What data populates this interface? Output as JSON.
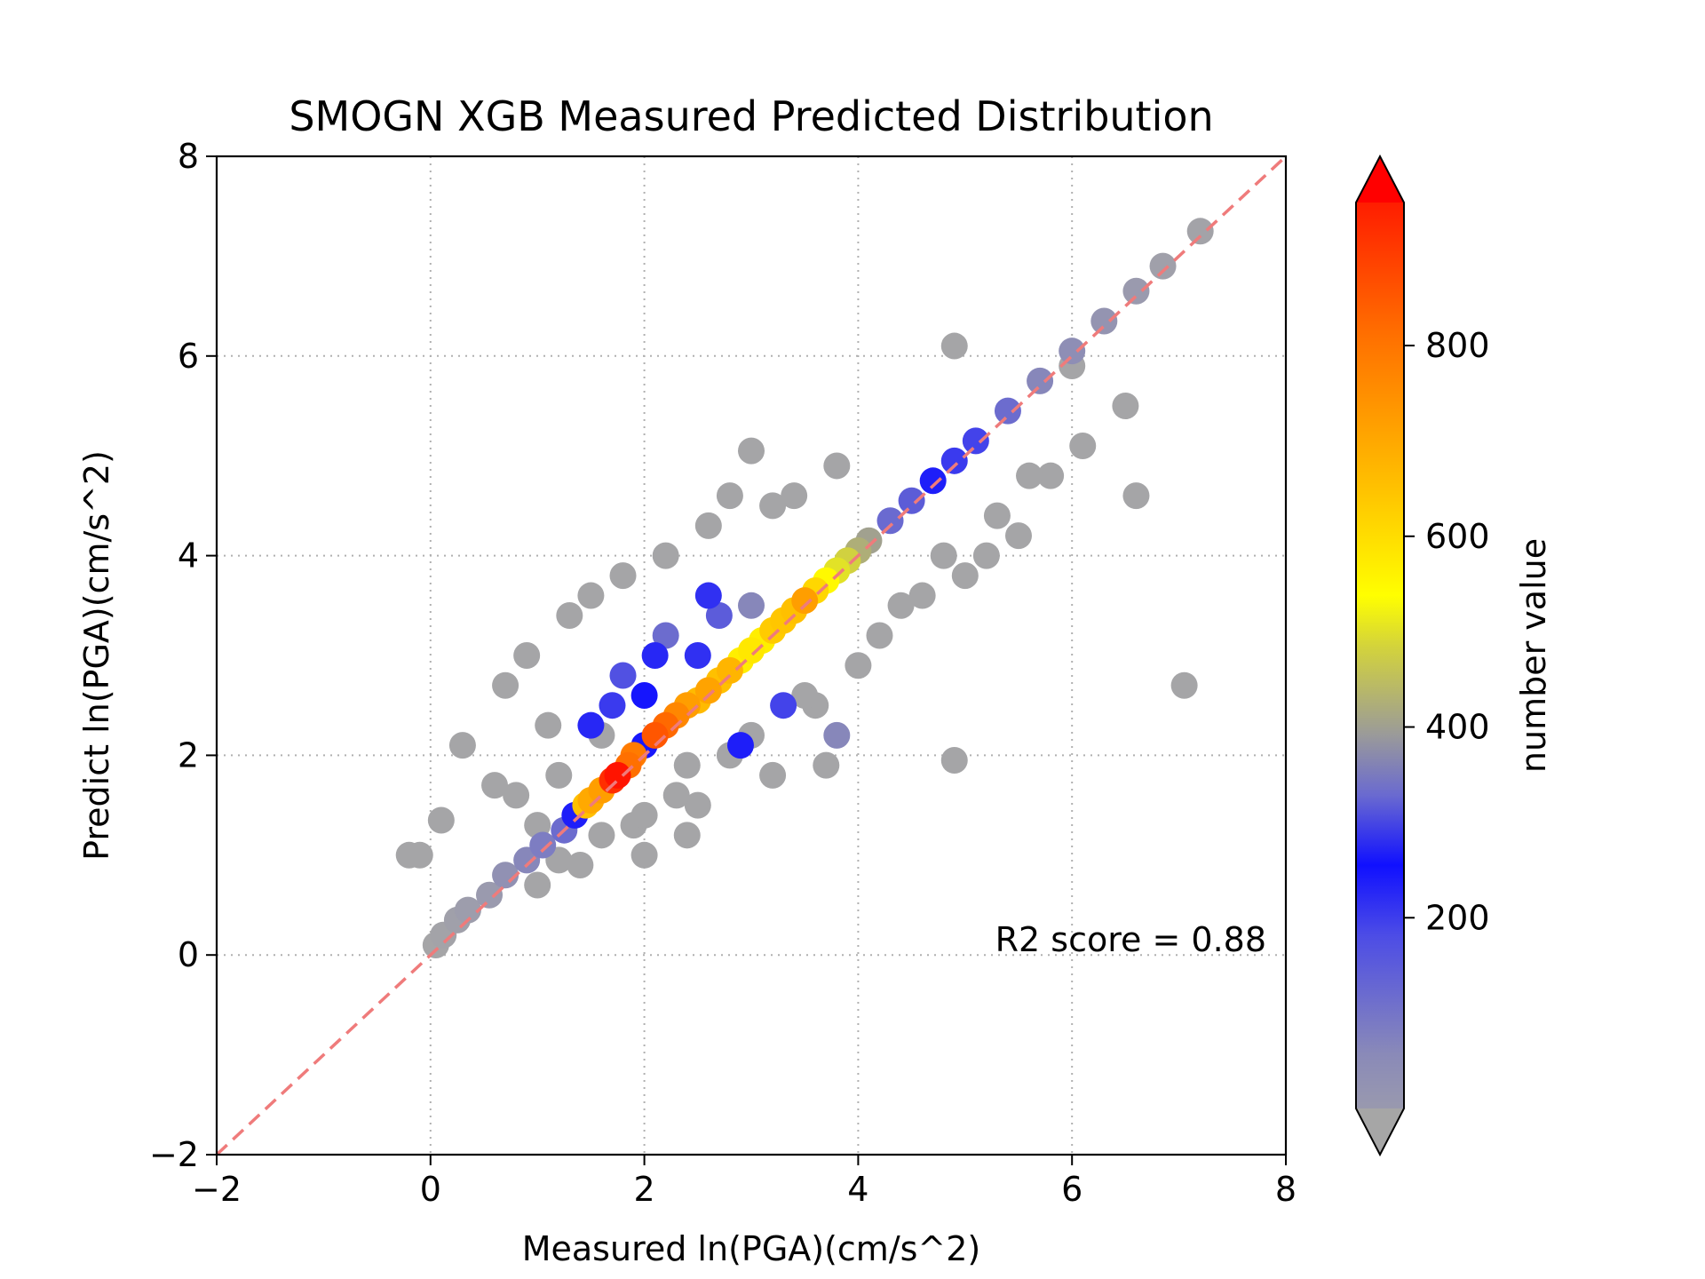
{
  "chart_data": {
    "type": "scatter",
    "title": "SMOGN XGB Measured Predicted Distribution",
    "xlabel": "Measured ln(PGA)(cm/s^2)",
    "ylabel": "Predict ln(PGA)(cm/s^2)",
    "xlim": [
      -2,
      8
    ],
    "ylim": [
      -2,
      8
    ],
    "xticks": [
      -2,
      0,
      2,
      4,
      6,
      8
    ],
    "yticks": [
      -2,
      0,
      2,
      4,
      6,
      8
    ],
    "xtick_labels": [
      "−2",
      "0",
      "2",
      "4",
      "6",
      "8"
    ],
    "ytick_labels": [
      "−2",
      "0",
      "2",
      "4",
      "6",
      "8"
    ],
    "grid": true,
    "reference_line": {
      "style": "dashed",
      "color": "#ef7b7b",
      "from": [
        -2,
        -2
      ],
      "to": [
        8,
        8
      ]
    },
    "annotation": "R2 score = 0.88",
    "colorbar": {
      "label": "number value",
      "range": [
        0,
        950
      ],
      "ticks": [
        200,
        400,
        600,
        800
      ],
      "tick_labels": [
        "200",
        "400",
        "600",
        "800"
      ],
      "colors": [
        "#a6a6a6",
        "#6a6ad0",
        "#1010ff",
        "#8a8aa0",
        "#ffff00",
        "#ffa000",
        "#ff0000"
      ],
      "extend": "both"
    },
    "x": [
      0.05,
      0.12,
      0.25,
      0.35,
      0.55,
      0.7,
      0.9,
      1.05,
      1.25,
      1.35,
      1.45,
      1.5,
      1.6,
      1.7,
      1.75,
      1.85,
      1.9,
      2.0,
      2.1,
      2.2,
      2.3,
      2.4,
      2.5,
      2.6,
      2.7,
      2.8,
      2.9,
      3.0,
      3.1,
      3.2,
      3.3,
      3.4,
      3.5,
      3.6,
      3.7,
      3.8,
      3.9,
      4.0,
      4.1,
      4.3,
      4.5,
      4.7,
      4.9,
      5.1,
      5.4,
      5.7,
      6.0,
      6.3,
      6.6,
      6.85,
      7.2,
      -0.2,
      -0.1,
      0.1,
      0.3,
      0.6,
      0.7,
      0.9,
      1.0,
      1.1,
      1.3,
      1.5,
      1.8,
      1.2,
      1.4,
      2.2,
      2.6,
      3.0,
      3.4,
      3.8,
      2.8,
      3.2,
      2.4,
      1.9,
      2.0,
      2.5,
      3.6,
      4.0,
      4.2,
      4.6,
      5.0,
      5.2,
      5.5,
      5.8,
      6.1,
      6.5,
      4.9,
      7.05,
      4.9,
      3.7,
      3.2,
      2.3,
      1.6,
      1.2,
      0.8,
      1.0,
      1.6,
      2.0,
      2.4,
      2.8,
      3.0,
      3.5,
      4.4,
      4.8,
      5.3,
      5.6,
      6.6,
      6.0,
      3.0,
      2.2,
      2.7,
      1.8,
      1.7,
      2.1,
      2.5,
      3.3,
      2.9,
      2.0,
      1.5,
      2.6,
      3.8
    ],
    "y": [
      0.1,
      0.2,
      0.35,
      0.45,
      0.6,
      0.8,
      0.95,
      1.1,
      1.25,
      1.4,
      1.5,
      1.55,
      1.65,
      1.75,
      1.8,
      1.9,
      2.0,
      2.1,
      2.2,
      2.3,
      2.4,
      2.5,
      2.55,
      2.65,
      2.75,
      2.85,
      2.95,
      3.05,
      3.15,
      3.25,
      3.35,
      3.45,
      3.55,
      3.65,
      3.75,
      3.85,
      3.95,
      4.05,
      4.15,
      4.35,
      4.55,
      4.75,
      4.95,
      5.15,
      5.45,
      5.75,
      6.05,
      6.35,
      6.65,
      6.9,
      7.25,
      1.0,
      1.0,
      1.35,
      2.1,
      1.7,
      2.7,
      3.0,
      1.3,
      2.3,
      3.4,
      3.6,
      3.8,
      0.95,
      0.9,
      4.0,
      4.3,
      5.05,
      4.6,
      4.9,
      4.6,
      4.5,
      1.2,
      1.3,
      1.0,
      1.5,
      2.5,
      2.9,
      3.2,
      3.6,
      3.8,
      4.0,
      4.2,
      4.8,
      5.1,
      5.5,
      6.1,
      2.7,
      1.95,
      1.9,
      1.8,
      1.6,
      2.2,
      1.8,
      1.6,
      0.7,
      1.2,
      1.4,
      1.9,
      2.0,
      2.2,
      2.6,
      3.5,
      4.0,
      4.4,
      4.8,
      4.6,
      5.9,
      3.5,
      3.2,
      3.4,
      2.8,
      2.5,
      3.0,
      3.0,
      2.5,
      2.1,
      2.6,
      2.3,
      3.6,
      2.2
    ],
    "c": [
      5,
      10,
      20,
      30,
      40,
      70,
      100,
      120,
      150,
      260,
      640,
      680,
      700,
      880,
      920,
      780,
      760,
      280,
      820,
      790,
      740,
      700,
      650,
      690,
      640,
      660,
      560,
      570,
      560,
      620,
      630,
      640,
      700,
      600,
      540,
      500,
      480,
      430,
      410,
      340,
      330,
      260,
      230,
      220,
      150,
      100,
      80,
      60,
      40,
      20,
      10,
      5,
      5,
      5,
      5,
      5,
      5,
      5,
      5,
      5,
      5,
      5,
      5,
      5,
      5,
      5,
      5,
      5,
      5,
      5,
      5,
      5,
      5,
      5,
      5,
      5,
      5,
      5,
      5,
      5,
      5,
      5,
      5,
      5,
      5,
      5,
      5,
      5,
      5,
      5,
      5,
      5,
      5,
      5,
      5,
      5,
      5,
      5,
      5,
      5,
      5,
      5,
      5,
      5,
      5,
      5,
      5,
      5,
      100,
      150,
      180,
      200,
      230,
      250,
      240,
      220,
      260,
      270,
      250,
      240,
      100
    ]
  }
}
